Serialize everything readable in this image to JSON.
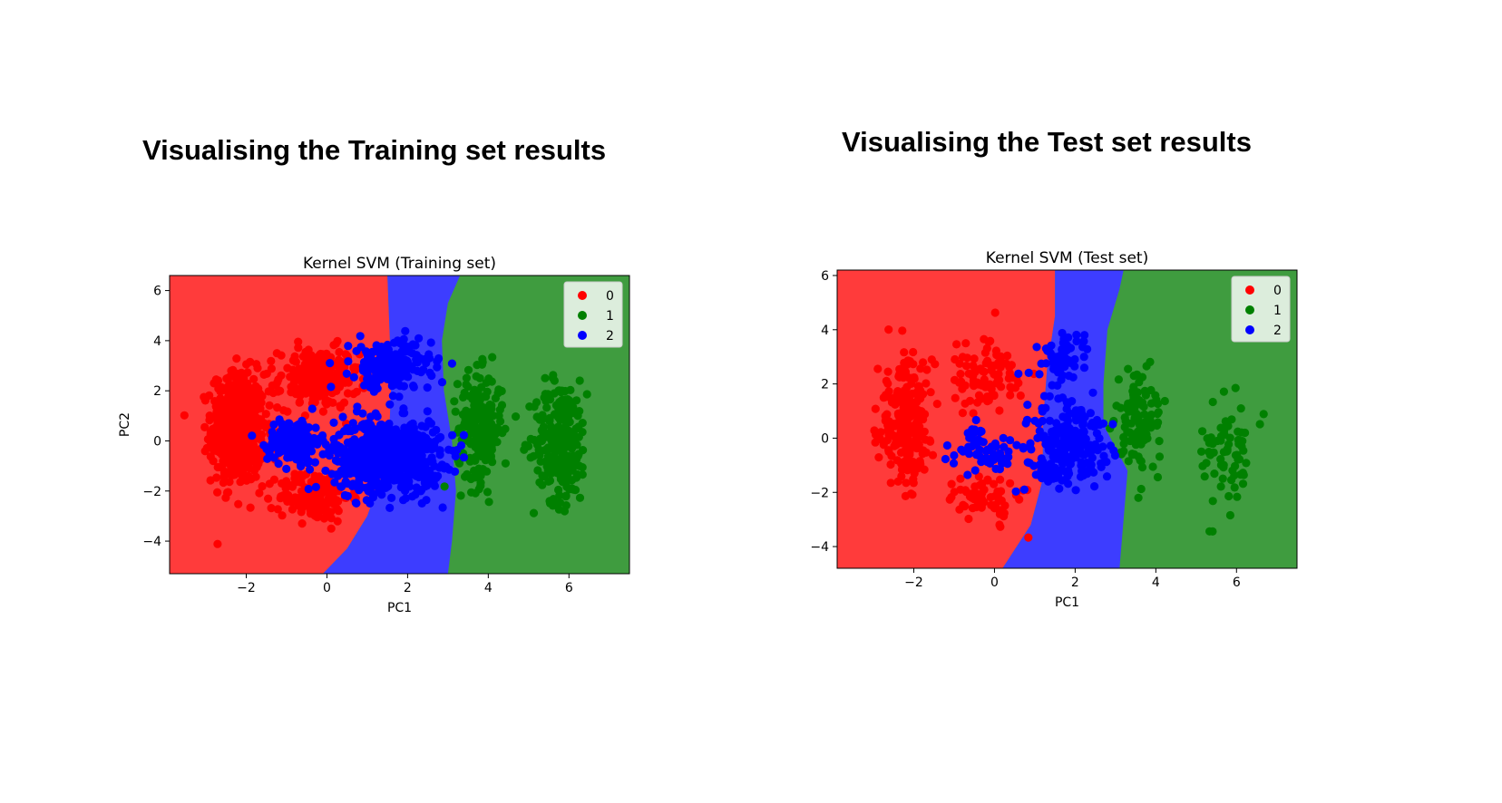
{
  "headings": {
    "train": "Visualising the Training set results",
    "test": "Visualising the Test set results"
  },
  "colors": {
    "region_0": "#ff3b3b",
    "region_1": "#3f9c3f",
    "region_2": "#3d3dff",
    "point_0": "#ff0000",
    "point_1": "#008000",
    "point_2": "#0000ff"
  },
  "chart_data": [
    {
      "type": "scatter",
      "title": "Kernel SVM (Training set)",
      "xlabel": "PC1",
      "ylabel": "PC2",
      "xlim": [
        -3.9,
        7.5
      ],
      "ylim": [
        -5.3,
        6.6
      ],
      "xticks": [
        -2,
        0,
        2,
        4,
        6
      ],
      "yticks": [
        -4,
        -2,
        0,
        2,
        4,
        6
      ],
      "xtick_labels": [
        "−2",
        "0",
        "2",
        "4",
        "6"
      ],
      "ytick_labels": [
        "−4",
        "−2",
        "0",
        "2",
        "4",
        "6"
      ],
      "legend": {
        "position": "top-right",
        "entries": [
          "0",
          "1",
          "2"
        ]
      },
      "decision_regions": {
        "boundary_0_2": [
          [
            -0.1,
            -5.3
          ],
          [
            0.5,
            -4.3
          ],
          [
            1.0,
            -3.0
          ],
          [
            1.4,
            -1.2
          ],
          [
            1.55,
            0.5
          ],
          [
            1.6,
            2.5
          ],
          [
            1.55,
            4.5
          ],
          [
            1.5,
            6.6
          ]
        ],
        "boundary_2_1": [
          [
            3.0,
            -5.3
          ],
          [
            3.1,
            -4.0
          ],
          [
            3.2,
            -2.0
          ],
          [
            3.1,
            0.0
          ],
          [
            2.9,
            2.0
          ],
          [
            2.85,
            4.0
          ],
          [
            3.0,
            5.5
          ],
          [
            3.3,
            6.6
          ]
        ]
      },
      "series": [
        {
          "name": "0",
          "clusters": [
            {
              "cx": -2.2,
              "cy": 0.5,
              "sx": 0.6,
              "sy": 2.0,
              "n": 600
            },
            {
              "cx": -0.2,
              "cy": 2.5,
              "sx": 0.9,
              "sy": 1.1,
              "n": 220
            },
            {
              "cx": -0.3,
              "cy": -2.2,
              "sx": 0.8,
              "sy": 0.9,
              "n": 160
            }
          ]
        },
        {
          "name": "1",
          "clusters": [
            {
              "cx": 5.8,
              "cy": 0.0,
              "sx": 0.6,
              "sy": 2.2,
              "n": 260
            },
            {
              "cx": 3.8,
              "cy": 0.5,
              "sx": 0.5,
              "sy": 2.0,
              "n": 220
            }
          ]
        },
        {
          "name": "2",
          "clusters": [
            {
              "cx": 1.5,
              "cy": -0.6,
              "sx": 1.2,
              "sy": 1.3,
              "n": 700
            },
            {
              "cx": -0.8,
              "cy": 0.0,
              "sx": 0.6,
              "sy": 0.8,
              "n": 160
            },
            {
              "cx": 1.6,
              "cy": 3.0,
              "sx": 0.9,
              "sy": 0.9,
              "n": 220
            }
          ]
        }
      ]
    },
    {
      "type": "scatter",
      "title": "Kernel SVM (Test set)",
      "xlabel": "PC1",
      "ylabel": "",
      "xlim": [
        -3.9,
        7.5
      ],
      "ylim": [
        -4.8,
        6.2
      ],
      "xticks": [
        -2,
        0,
        2,
        4,
        6
      ],
      "yticks": [
        -4,
        -2,
        0,
        2,
        4,
        6
      ],
      "xtick_labels": [
        "−2",
        "0",
        "2",
        "4",
        "6"
      ],
      "ytick_labels": [
        "−4",
        "−2",
        "0",
        "2",
        "4",
        "6"
      ],
      "legend": {
        "position": "top-right",
        "entries": [
          "0",
          "1",
          "2"
        ]
      },
      "decision_regions": {
        "boundary_0_2": [
          [
            0.2,
            -4.8
          ],
          [
            0.9,
            -3.2
          ],
          [
            1.2,
            -1.5
          ],
          [
            1.2,
            0.5
          ],
          [
            1.3,
            2.5
          ],
          [
            1.5,
            4.5
          ],
          [
            1.5,
            6.2
          ]
        ],
        "boundary_2_1": [
          [
            3.1,
            -4.8
          ],
          [
            3.2,
            -3.0
          ],
          [
            3.3,
            -1.2
          ],
          [
            2.7,
            0.5
          ],
          [
            2.7,
            2.0
          ],
          [
            2.8,
            4.0
          ],
          [
            3.1,
            5.5
          ],
          [
            3.2,
            6.2
          ]
        ]
      },
      "series": [
        {
          "name": "0",
          "clusters": [
            {
              "cx": -2.2,
              "cy": 0.6,
              "sx": 0.6,
              "sy": 2.0,
              "n": 260
            },
            {
              "cx": -0.3,
              "cy": 2.3,
              "sx": 0.9,
              "sy": 1.2,
              "n": 90
            },
            {
              "cx": -0.2,
              "cy": -2.2,
              "sx": 0.7,
              "sy": 0.8,
              "n": 70
            }
          ]
        },
        {
          "name": "1",
          "clusters": [
            {
              "cx": 5.8,
              "cy": -0.6,
              "sx": 0.6,
              "sy": 1.8,
              "n": 70
            },
            {
              "cx": 3.6,
              "cy": 0.6,
              "sx": 0.5,
              "sy": 1.8,
              "n": 110
            }
          ]
        },
        {
          "name": "2",
          "clusters": [
            {
              "cx": 1.8,
              "cy": -0.3,
              "sx": 0.9,
              "sy": 1.4,
              "n": 230
            },
            {
              "cx": -0.3,
              "cy": -0.4,
              "sx": 0.7,
              "sy": 0.8,
              "n": 60
            },
            {
              "cx": 1.7,
              "cy": 3.0,
              "sx": 0.6,
              "sy": 0.8,
              "n": 60
            }
          ]
        }
      ]
    }
  ]
}
